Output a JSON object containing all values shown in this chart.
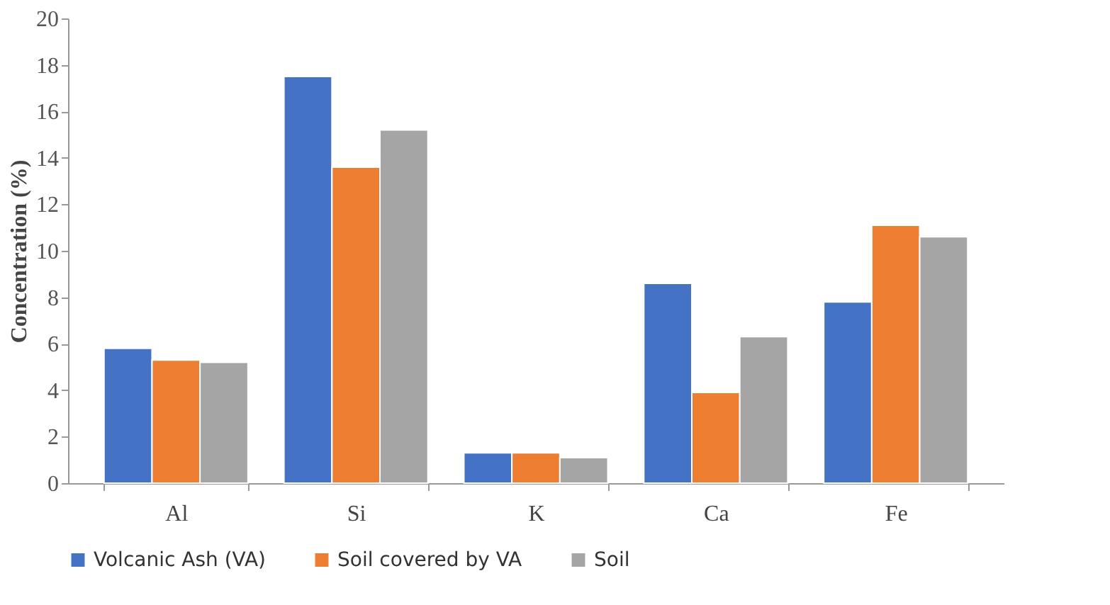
{
  "chart_data": {
    "type": "bar",
    "ylabel": "Concentration (%)",
    "categories": [
      "Al",
      "Si",
      "K",
      "Ca",
      "Fe"
    ],
    "series": [
      {
        "name": "Volcanic Ash (VA)",
        "color": "#4472c4",
        "values": [
          5.8,
          17.5,
          1.3,
          8.6,
          7.8
        ]
      },
      {
        "name": "Soil covered by VA",
        "color": "#ed7d31",
        "values": [
          5.3,
          13.6,
          1.3,
          3.9,
          11.1
        ]
      },
      {
        "name": "Soil",
        "color": "#a5a5a5",
        "values": [
          5.2,
          15.2,
          1.1,
          6.3,
          10.6
        ]
      }
    ],
    "ylim": [
      0,
      20
    ],
    "yticks": [
      0,
      2,
      4,
      6,
      8,
      10,
      12,
      14,
      16,
      18,
      20
    ],
    "grid": false,
    "legend": "bottom"
  }
}
